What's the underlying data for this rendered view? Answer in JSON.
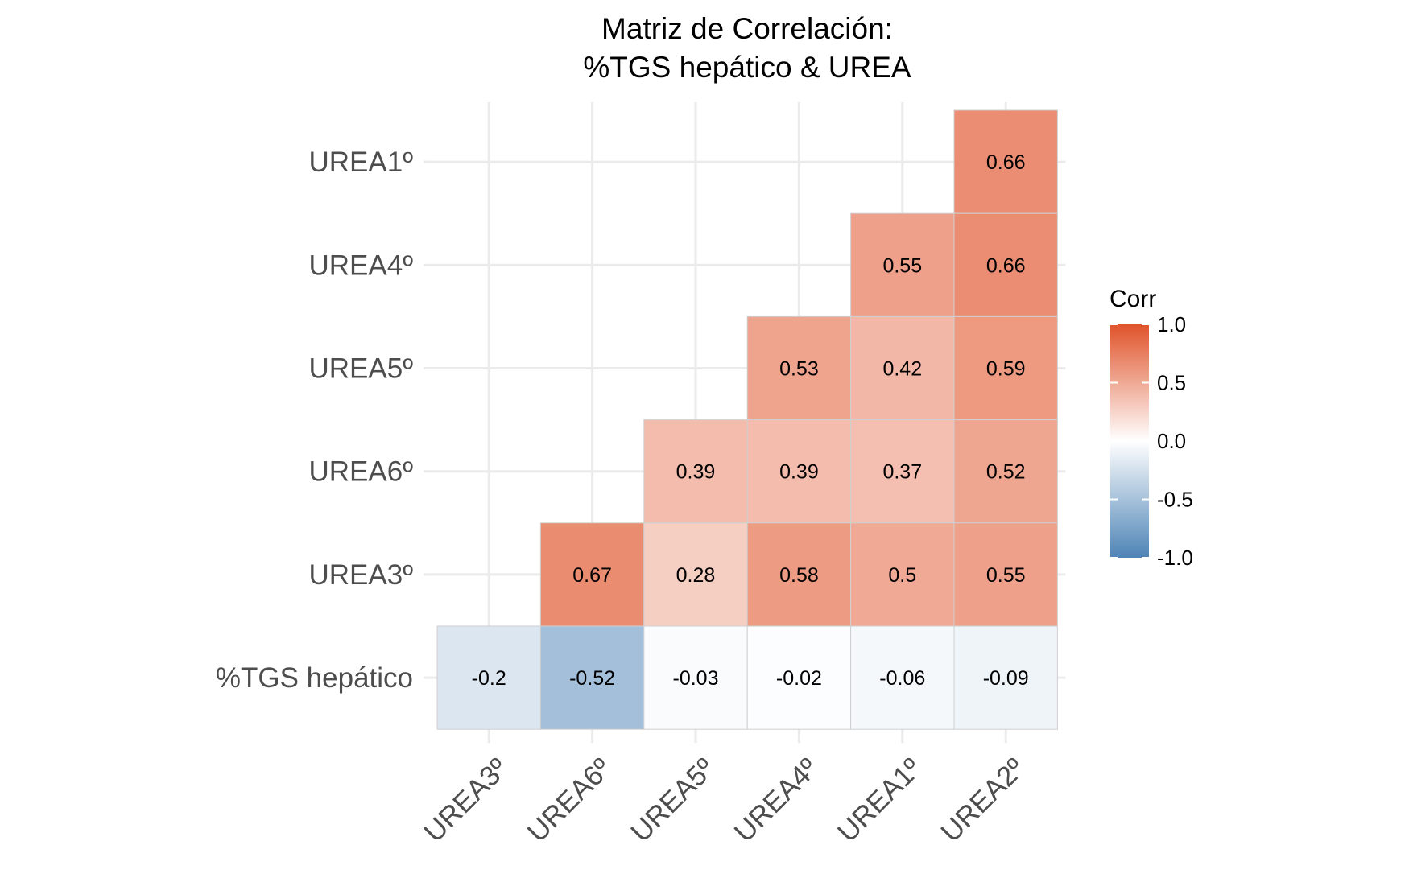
{
  "chart_data": {
    "type": "heatmap",
    "title_lines": [
      "Matriz de Correlación:",
      "%TGS hepático & UREA"
    ],
    "x_categories": [
      "UREA3º",
      "UREA6º",
      "UREA5º",
      "UREA4º",
      "UREA1º",
      "UREA2º"
    ],
    "y_categories": [
      "UREA1º",
      "UREA4º",
      "UREA5º",
      "UREA6º",
      "UREA3º",
      "%TGS hepático"
    ],
    "cells": [
      {
        "x": "UREA2º",
        "y": "UREA1º",
        "value": 0.66,
        "label": "0.66"
      },
      {
        "x": "UREA1º",
        "y": "UREA4º",
        "value": 0.55,
        "label": "0.55"
      },
      {
        "x": "UREA2º",
        "y": "UREA4º",
        "value": 0.66,
        "label": "0.66"
      },
      {
        "x": "UREA4º",
        "y": "UREA5º",
        "value": 0.53,
        "label": "0.53"
      },
      {
        "x": "UREA1º",
        "y": "UREA5º",
        "value": 0.42,
        "label": "0.42"
      },
      {
        "x": "UREA2º",
        "y": "UREA5º",
        "value": 0.59,
        "label": "0.59"
      },
      {
        "x": "UREA5º",
        "y": "UREA6º",
        "value": 0.39,
        "label": "0.39"
      },
      {
        "x": "UREA4º",
        "y": "UREA6º",
        "value": 0.39,
        "label": "0.39"
      },
      {
        "x": "UREA1º",
        "y": "UREA6º",
        "value": 0.37,
        "label": "0.37"
      },
      {
        "x": "UREA2º",
        "y": "UREA6º",
        "value": 0.52,
        "label": "0.52"
      },
      {
        "x": "UREA6º",
        "y": "UREA3º",
        "value": 0.67,
        "label": "0.67"
      },
      {
        "x": "UREA5º",
        "y": "UREA3º",
        "value": 0.28,
        "label": "0.28"
      },
      {
        "x": "UREA4º",
        "y": "UREA3º",
        "value": 0.58,
        "label": "0.58"
      },
      {
        "x": "UREA1º",
        "y": "UREA3º",
        "value": 0.5,
        "label": "0.5"
      },
      {
        "x": "UREA2º",
        "y": "UREA3º",
        "value": 0.55,
        "label": "0.55"
      },
      {
        "x": "UREA3º",
        "y": "%TGS hepático",
        "value": -0.2,
        "label": "-0.2"
      },
      {
        "x": "UREA6º",
        "y": "%TGS hepático",
        "value": -0.52,
        "label": "-0.52"
      },
      {
        "x": "UREA5º",
        "y": "%TGS hepático",
        "value": -0.03,
        "label": "-0.03"
      },
      {
        "x": "UREA4º",
        "y": "%TGS hepático",
        "value": -0.02,
        "label": "-0.02"
      },
      {
        "x": "UREA1º",
        "y": "%TGS hepático",
        "value": -0.06,
        "label": "-0.06"
      },
      {
        "x": "UREA2º",
        "y": "%TGS hepático",
        "value": -0.09,
        "label": "-0.09"
      }
    ],
    "legend": {
      "title": "Corr",
      "position": "right",
      "range": [
        -1.0,
        1.0
      ],
      "ticks": [
        "1.0",
        "0.5",
        "0.0",
        "-0.5",
        "-1.0"
      ],
      "tick_values": [
        1.0,
        0.5,
        0.0,
        -0.5,
        -1.0
      ]
    },
    "colors": {
      "low": "#4E84B6",
      "mid": "#FFFFFF",
      "high": "#E0532A"
    },
    "grid": true
  }
}
